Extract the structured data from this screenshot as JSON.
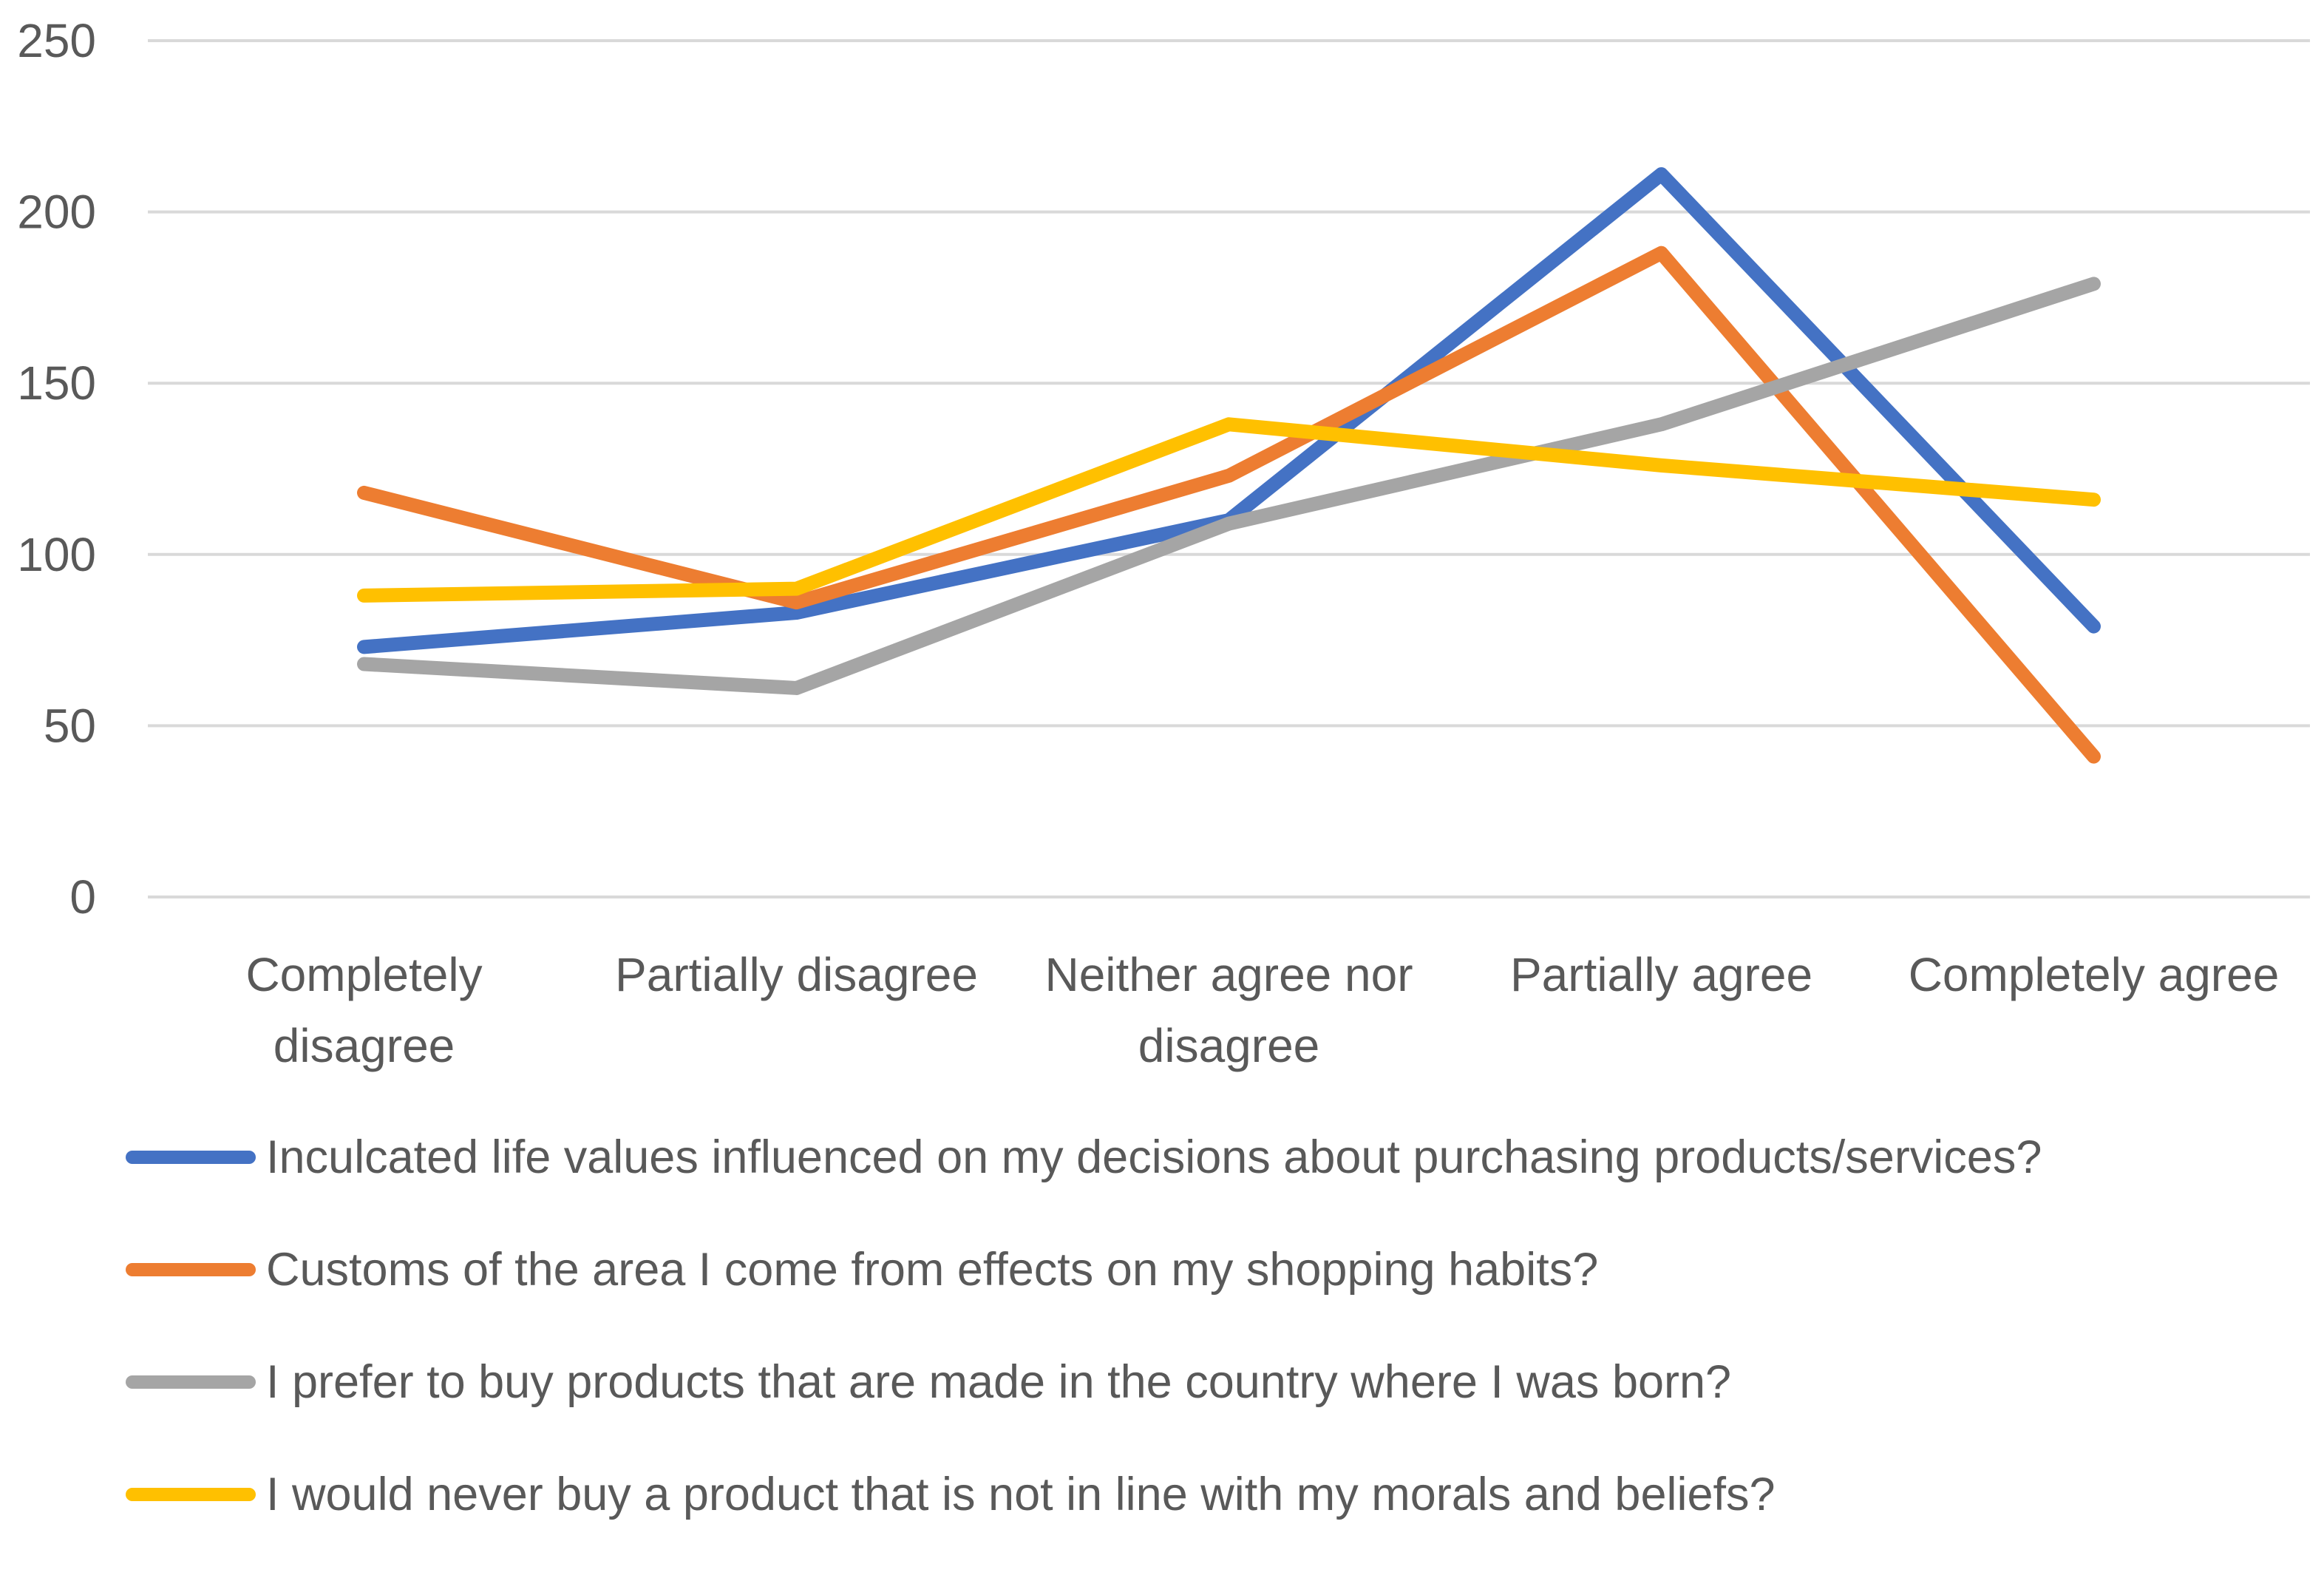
{
  "chart_data": {
    "type": "line",
    "categories": [
      "Completely disagree",
      "Partially disagree",
      "Neither agree nor disagree",
      "Partially agree",
      "Completely agree"
    ],
    "category_lines": [
      [
        "Completely",
        "disagree"
      ],
      [
        "Partially disagree"
      ],
      [
        "Neither agree nor",
        "disagree"
      ],
      [
        "Partially agree"
      ],
      [
        "Completely agree"
      ]
    ],
    "ylim": [
      0,
      250
    ],
    "yticks": [
      "0",
      "50",
      "100",
      "150",
      "200",
      "250"
    ],
    "grid": true,
    "legend_position": "bottom",
    "series": [
      {
        "name": "Inculcated life values influenced on my decisions about purchasing products/services?",
        "color": "#4472C4",
        "values": [
          73,
          83,
          110,
          211,
          79
        ]
      },
      {
        "name": "Customs of the area I come from effects on my shopping habits?",
        "color": "#ED7D31",
        "values": [
          118,
          86,
          123,
          188,
          41
        ]
      },
      {
        "name": "I prefer to buy products that are made in the country where I was born?",
        "color": "#A5A5A5",
        "values": [
          68,
          61,
          109,
          138,
          179
        ]
      },
      {
        "name": "I would never buy a product that is not in line with my morals and beliefs?",
        "color": "#FFC000",
        "values": [
          88,
          90,
          138,
          126,
          116
        ]
      }
    ]
  }
}
